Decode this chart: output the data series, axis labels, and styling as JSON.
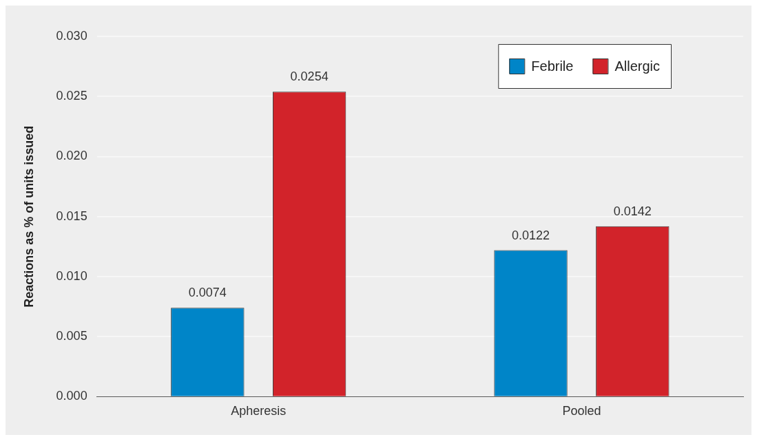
{
  "chart_data": {
    "type": "bar",
    "ylabel": "Reactions as % of units issued",
    "categories": [
      "Apheresis",
      "Pooled"
    ],
    "series": [
      {
        "name": "Febrile",
        "color": "#0085c8",
        "values": [
          0.0074,
          0.0122
        ]
      },
      {
        "name": "Allergic",
        "color": "#d2232a",
        "values": [
          0.0254,
          0.0142
        ]
      }
    ],
    "ylim": [
      0,
      0.03
    ],
    "yticks": [
      "0.000",
      "0.005",
      "0.010",
      "0.015",
      "0.020",
      "0.025",
      "0.030"
    ],
    "grid": "y",
    "legend": "top right",
    "data_labels": true
  }
}
